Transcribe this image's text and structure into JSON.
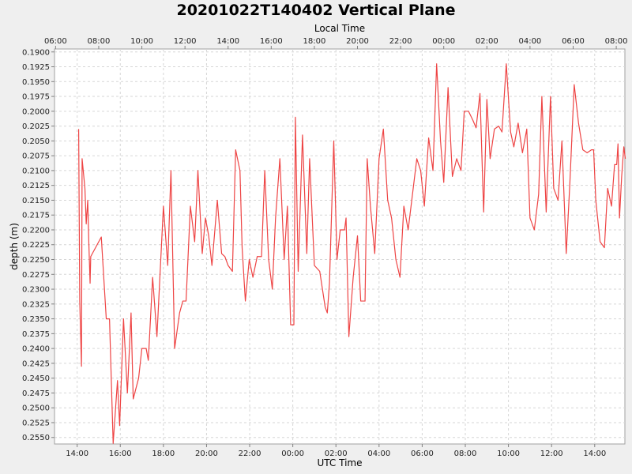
{
  "chart_data": {
    "type": "line",
    "title": "20201022T140402 Vertical Plane",
    "xlabel": "UTC Time",
    "x2label": "Local Time",
    "ylabel": "depth (m)",
    "y_inverted": true,
    "ylim": [
      0.1895,
      0.2561
    ],
    "xlim_hours": [
      12.95,
      39.4
    ],
    "x_ticks": [
      {
        "label": "14:00",
        "h": 14
      },
      {
        "label": "16:00",
        "h": 16
      },
      {
        "label": "18:00",
        "h": 18
      },
      {
        "label": "20:00",
        "h": 20
      },
      {
        "label": "22:00",
        "h": 22
      },
      {
        "label": "00:00",
        "h": 24
      },
      {
        "label": "02:00",
        "h": 26
      },
      {
        "label": "04:00",
        "h": 28
      },
      {
        "label": "06:00",
        "h": 30
      },
      {
        "label": "08:00",
        "h": 32
      },
      {
        "label": "10:00",
        "h": 34
      },
      {
        "label": "12:00",
        "h": 36
      },
      {
        "label": "14:00",
        "h": 38
      }
    ],
    "x2_ticks": [
      {
        "label": "06:00",
        "h": 13.0
      },
      {
        "label": "08:00",
        "h": 15.0
      },
      {
        "label": "10:00",
        "h": 17.0
      },
      {
        "label": "12:00",
        "h": 19.0
      },
      {
        "label": "14:00",
        "h": 21.0
      },
      {
        "label": "16:00",
        "h": 23.0
      },
      {
        "label": "18:00",
        "h": 25.0
      },
      {
        "label": "20:00",
        "h": 27.0
      },
      {
        "label": "22:00",
        "h": 29.0
      },
      {
        "label": "00:00",
        "h": 31.0
      },
      {
        "label": "02:00",
        "h": 33.0
      },
      {
        "label": "04:00",
        "h": 35.0
      },
      {
        "label": "06:00",
        "h": 37.0
      },
      {
        "label": "08:00",
        "h": 39.0
      }
    ],
    "y_ticks": [
      "0.1900",
      "0.1925",
      "0.1950",
      "0.1975",
      "0.2000",
      "0.2025",
      "0.2050",
      "0.2075",
      "0.2100",
      "0.2125",
      "0.2150",
      "0.2175",
      "0.2200",
      "0.2225",
      "0.2250",
      "0.2275",
      "0.2300",
      "0.2325",
      "0.2350",
      "0.2375",
      "0.2400",
      "0.2425",
      "0.2450",
      "0.2475",
      "0.2500",
      "0.2525",
      "0.2550"
    ],
    "grid": true,
    "series": [
      {
        "color": "#ee4444",
        "points": [
          [
            14.07,
            0.203
          ],
          [
            14.12,
            0.232
          ],
          [
            14.2,
            0.243
          ],
          [
            14.23,
            0.208
          ],
          [
            14.36,
            0.213
          ],
          [
            14.42,
            0.219
          ],
          [
            14.49,
            0.215
          ],
          [
            14.54,
            0.222
          ],
          [
            14.6,
            0.229
          ],
          [
            14.63,
            0.2245
          ],
          [
            15.12,
            0.2212
          ],
          [
            15.35,
            0.235
          ],
          [
            15.5,
            0.235
          ],
          [
            15.67,
            0.256
          ],
          [
            15.87,
            0.2454
          ],
          [
            15.97,
            0.253
          ],
          [
            16.15,
            0.235
          ],
          [
            16.33,
            0.2475
          ],
          [
            16.5,
            0.234
          ],
          [
            16.6,
            0.2485
          ],
          [
            16.85,
            0.245
          ],
          [
            17.0,
            0.24
          ],
          [
            17.2,
            0.24
          ],
          [
            17.3,
            0.242
          ],
          [
            17.5,
            0.228
          ],
          [
            17.7,
            0.238
          ],
          [
            18.0,
            0.216
          ],
          [
            18.2,
            0.226
          ],
          [
            18.35,
            0.21
          ],
          [
            18.52,
            0.24
          ],
          [
            18.75,
            0.234
          ],
          [
            18.9,
            0.232
          ],
          [
            19.05,
            0.232
          ],
          [
            19.25,
            0.216
          ],
          [
            19.45,
            0.222
          ],
          [
            19.6,
            0.21
          ],
          [
            19.8,
            0.224
          ],
          [
            19.95,
            0.218
          ],
          [
            20.1,
            0.221
          ],
          [
            20.25,
            0.226
          ],
          [
            20.5,
            0.215
          ],
          [
            20.7,
            0.224
          ],
          [
            20.85,
            0.2245
          ],
          [
            21.0,
            0.226
          ],
          [
            21.2,
            0.227
          ],
          [
            21.35,
            0.2065
          ],
          [
            21.55,
            0.21
          ],
          [
            21.65,
            0.223
          ],
          [
            21.8,
            0.232
          ],
          [
            21.98,
            0.225
          ],
          [
            22.15,
            0.228
          ],
          [
            22.35,
            0.2245
          ],
          [
            22.55,
            0.2245
          ],
          [
            22.7,
            0.21
          ],
          [
            22.88,
            0.225
          ],
          [
            23.05,
            0.23
          ],
          [
            23.2,
            0.218
          ],
          [
            23.4,
            0.208
          ],
          [
            23.6,
            0.225
          ],
          [
            23.75,
            0.216
          ],
          [
            23.9,
            0.236
          ],
          [
            24.05,
            0.236
          ],
          [
            24.12,
            0.201
          ],
          [
            24.25,
            0.227
          ],
          [
            24.45,
            0.204
          ],
          [
            24.65,
            0.224
          ],
          [
            24.78,
            0.208
          ],
          [
            25.0,
            0.226
          ],
          [
            25.25,
            0.227
          ],
          [
            25.5,
            0.233
          ],
          [
            25.6,
            0.234
          ],
          [
            25.7,
            0.229
          ],
          [
            25.9,
            0.205
          ],
          [
            26.05,
            0.225
          ],
          [
            26.2,
            0.22
          ],
          [
            26.4,
            0.22
          ],
          [
            26.47,
            0.218
          ],
          [
            26.6,
            0.238
          ],
          [
            26.8,
            0.228
          ],
          [
            27.0,
            0.221
          ],
          [
            27.15,
            0.232
          ],
          [
            27.35,
            0.232
          ],
          [
            27.45,
            0.208
          ],
          [
            27.6,
            0.216
          ],
          [
            27.8,
            0.224
          ],
          [
            28.0,
            0.208
          ],
          [
            28.2,
            0.203
          ],
          [
            28.4,
            0.215
          ],
          [
            28.58,
            0.218
          ],
          [
            28.78,
            0.225
          ],
          [
            28.97,
            0.228
          ],
          [
            29.15,
            0.216
          ],
          [
            29.35,
            0.22
          ],
          [
            29.55,
            0.214
          ],
          [
            29.75,
            0.208
          ],
          [
            29.93,
            0.21
          ],
          [
            30.1,
            0.216
          ],
          [
            30.3,
            0.2045
          ],
          [
            30.5,
            0.21
          ],
          [
            30.67,
            0.192
          ],
          [
            30.85,
            0.205
          ],
          [
            31.0,
            0.212
          ],
          [
            31.2,
            0.196
          ],
          [
            31.4,
            0.211
          ],
          [
            31.6,
            0.208
          ],
          [
            31.8,
            0.21
          ],
          [
            31.95,
            0.2
          ],
          [
            32.15,
            0.2
          ],
          [
            32.35,
            0.2015
          ],
          [
            32.5,
            0.2028
          ],
          [
            32.68,
            0.197
          ],
          [
            32.85,
            0.217
          ],
          [
            33.0,
            0.198
          ],
          [
            33.15,
            0.208
          ],
          [
            33.35,
            0.203
          ],
          [
            33.55,
            0.2025
          ],
          [
            33.7,
            0.2035
          ],
          [
            33.9,
            0.192
          ],
          [
            34.1,
            0.2035
          ],
          [
            34.25,
            0.206
          ],
          [
            34.45,
            0.202
          ],
          [
            34.65,
            0.207
          ],
          [
            34.85,
            0.203
          ],
          [
            35.0,
            0.218
          ],
          [
            35.2,
            0.22
          ],
          [
            35.4,
            0.214
          ],
          [
            35.55,
            0.1975
          ],
          [
            35.75,
            0.217
          ],
          [
            35.95,
            0.1975
          ],
          [
            36.1,
            0.213
          ],
          [
            36.3,
            0.215
          ],
          [
            36.48,
            0.205
          ],
          [
            36.68,
            0.224
          ],
          [
            36.85,
            0.212
          ],
          [
            37.05,
            0.1955
          ],
          [
            37.25,
            0.202
          ],
          [
            37.45,
            0.2065
          ],
          [
            37.65,
            0.207
          ],
          [
            37.85,
            0.2065
          ],
          [
            37.95,
            0.2065
          ],
          [
            38.05,
            0.215
          ],
          [
            38.25,
            0.222
          ],
          [
            38.45,
            0.223
          ],
          [
            38.6,
            0.213
          ],
          [
            38.78,
            0.216
          ],
          [
            38.92,
            0.209
          ],
          [
            39.02,
            0.209
          ],
          [
            39.08,
            0.2055
          ],
          [
            39.15,
            0.218
          ],
          [
            39.25,
            0.211
          ],
          [
            39.35,
            0.206
          ],
          [
            39.42,
            0.208
          ]
        ]
      }
    ]
  }
}
